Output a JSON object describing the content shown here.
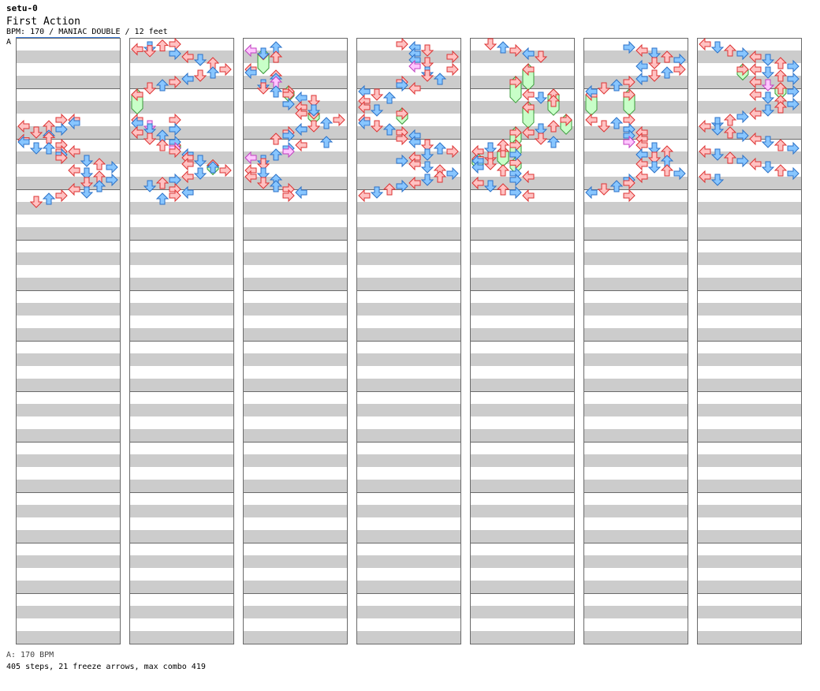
{
  "header": {
    "author": "setu-0",
    "title": "First Action",
    "info": "BPM: 170 / MANIAC DOUBLE / 12 feet",
    "speed_marker": "A"
  },
  "footer": {
    "legend": "A: 170 BPM",
    "summary": "405 steps, 21 freeze arrows, max combo 419"
  },
  "colors": {
    "band": "#cccccc",
    "frame": "#6a6a6a",
    "red_fill": "#ffc2c2",
    "red_stroke": "#dd3333",
    "blue_fill": "#88c6ff",
    "blue_stroke": "#2c72c8",
    "pink_fill": "#ffc6ff",
    "pink_stroke": "#c040c0",
    "freeze_fill": "#c8ffc8",
    "freeze_stroke": "#3a9a3a"
  },
  "chart_data": {
    "type": "stepchart",
    "bpm": 170,
    "mode": "MANIAC DOUBLE",
    "difficulty_feet": 12,
    "steps": 405,
    "freeze_arrows": 21,
    "max_combo": 419,
    "columns": 7,
    "measures_per_column": 12,
    "lanes": 8,
    "lane_legend": [
      "L",
      "D",
      "U",
      "R",
      "L",
      "D",
      "U",
      "R"
    ],
    "notes": [
      [
        0,
        6.0,
        3
      ],
      [
        0,
        6.0,
        4
      ],
      [
        0,
        6.25,
        4
      ],
      [
        0,
        6.5,
        2
      ],
      [
        0,
        6.5,
        0
      ],
      [
        0,
        6.75,
        3
      ],
      [
        0,
        7.0,
        1
      ],
      [
        0,
        7.25,
        2
      ],
      [
        0,
        7.4,
        2
      ],
      [
        0,
        7.6,
        0
      ],
      [
        0,
        7.75,
        0
      ],
      [
        0,
        8.0,
        3
      ],
      [
        0,
        8.25,
        2
      ],
      [
        0,
        8.25,
        1
      ],
      [
        0,
        8.5,
        3
      ],
      [
        0,
        8.5,
        4
      ],
      [
        0,
        8.75,
        3
      ],
      [
        0,
        9.0,
        3
      ],
      [
        0,
        9.25,
        5
      ],
      [
        0,
        9.5,
        6
      ],
      [
        0,
        9.75,
        7
      ],
      [
        0,
        10.0,
        4
      ],
      [
        0,
        10.25,
        5
      ],
      [
        0,
        10.5,
        6
      ],
      [
        0,
        10.75,
        7
      ],
      [
        0,
        11.0,
        5
      ],
      [
        0,
        11.25,
        6
      ],
      [
        0,
        11.5,
        4
      ],
      [
        0,
        11.75,
        5
      ],
      [
        0,
        12.0,
        3
      ],
      [
        0,
        12.25,
        2
      ],
      [
        0,
        12.5,
        1
      ],
      [
        1,
        0.0,
        3
      ],
      [
        1,
        0.1,
        2
      ],
      [
        1,
        0.25,
        1
      ],
      [
        1,
        0.4,
        0
      ],
      [
        1,
        0.55,
        1
      ],
      [
        1,
        0.75,
        3
      ],
      [
        1,
        1.0,
        4
      ],
      [
        1,
        1.25,
        5
      ],
      [
        1,
        1.5,
        6
      ],
      [
        1,
        2.0,
        7
      ],
      [
        1,
        2.25,
        6
      ],
      [
        1,
        2.5,
        5
      ],
      [
        1,
        2.75,
        4
      ],
      [
        1,
        3.0,
        3
      ],
      [
        1,
        3.25,
        2
      ],
      [
        1,
        3.5,
        1
      ],
      [
        1,
        4.0,
        0
      ],
      [
        1,
        6.0,
        0
      ],
      [
        1,
        6.0,
        3
      ],
      [
        1,
        6.25,
        0
      ],
      [
        1,
        6.5,
        1
      ],
      [
        1,
        6.75,
        1
      ],
      [
        1,
        6.75,
        3
      ],
      [
        1,
        7.0,
        0
      ],
      [
        1,
        7.25,
        2
      ],
      [
        1,
        7.5,
        1
      ],
      [
        1,
        7.75,
        3
      ],
      [
        1,
        8.0,
        2
      ],
      [
        1,
        8.25,
        3
      ],
      [
        1,
        8.5,
        3
      ],
      [
        1,
        8.75,
        4
      ],
      [
        1,
        9.0,
        4
      ],
      [
        1,
        9.25,
        5
      ],
      [
        1,
        9.5,
        4
      ],
      [
        1,
        9.75,
        6
      ],
      [
        1,
        10.0,
        7
      ],
      [
        1,
        10.25,
        5
      ],
      [
        1,
        10.5,
        4
      ],
      [
        1,
        10.75,
        3
      ],
      [
        1,
        11.0,
        2
      ],
      [
        1,
        11.25,
        1
      ],
      [
        1,
        11.5,
        3
      ],
      [
        1,
        11.75,
        4
      ],
      [
        1,
        12.0,
        3
      ],
      [
        1,
        12.25,
        2
      ],
      [
        2,
        0.25,
        2
      ],
      [
        2,
        0.5,
        0
      ],
      [
        2,
        0.75,
        1
      ],
      [
        2,
        1.0,
        2
      ],
      [
        2,
        2.0,
        0
      ],
      [
        2,
        2.25,
        0
      ],
      [
        2,
        2.5,
        2
      ],
      [
        2,
        2.75,
        2
      ],
      [
        2,
        3.0,
        2
      ],
      [
        2,
        3.25,
        1
      ],
      [
        2,
        3.5,
        1
      ],
      [
        2,
        3.75,
        2
      ],
      [
        2,
        4.0,
        3
      ],
      [
        2,
        4.25,
        4
      ],
      [
        2,
        4.5,
        5
      ],
      [
        2,
        4.75,
        3
      ],
      [
        2,
        5.0,
        4
      ],
      [
        2,
        5.25,
        5
      ],
      [
        2,
        5.5,
        4
      ],
      [
        2,
        6.0,
        7
      ],
      [
        2,
        6.25,
        6
      ],
      [
        2,
        6.5,
        5
      ],
      [
        2,
        6.75,
        4
      ],
      [
        2,
        7.0,
        3
      ],
      [
        2,
        7.25,
        3
      ],
      [
        2,
        7.5,
        2
      ],
      [
        2,
        7.75,
        6
      ],
      [
        2,
        8.0,
        4
      ],
      [
        2,
        8.25,
        3
      ],
      [
        2,
        8.5,
        3
      ],
      [
        2,
        8.75,
        2
      ],
      [
        2,
        9.0,
        0
      ],
      [
        2,
        9.25,
        1
      ],
      [
        2,
        9.5,
        1
      ],
      [
        2,
        10.0,
        0
      ],
      [
        2,
        10.25,
        1
      ],
      [
        2,
        10.5,
        0
      ],
      [
        2,
        10.75,
        2
      ],
      [
        2,
        11.0,
        1
      ],
      [
        2,
        11.25,
        2
      ],
      [
        2,
        11.5,
        3
      ],
      [
        2,
        11.75,
        4
      ],
      [
        2,
        12.0,
        3
      ],
      [
        3,
        0.0,
        3
      ],
      [
        3,
        0.25,
        4
      ],
      [
        3,
        0.5,
        5
      ],
      [
        3,
        0.75,
        4
      ],
      [
        3,
        1.0,
        7
      ],
      [
        3,
        1.25,
        4
      ],
      [
        3,
        1.5,
        5
      ],
      [
        3,
        1.75,
        4
      ],
      [
        3,
        2.0,
        7
      ],
      [
        3,
        2.25,
        5
      ],
      [
        3,
        2.5,
        5
      ],
      [
        3,
        2.75,
        6
      ],
      [
        3,
        3.0,
        3
      ],
      [
        3,
        3.25,
        3
      ],
      [
        3,
        3.5,
        4
      ],
      [
        3,
        3.75,
        0
      ],
      [
        3,
        4.0,
        1
      ],
      [
        3,
        4.25,
        2
      ],
      [
        3,
        4.5,
        0
      ],
      [
        3,
        5.0,
        0
      ],
      [
        3,
        5.25,
        1
      ],
      [
        3,
        5.5,
        3
      ],
      [
        3,
        6.0,
        0
      ],
      [
        3,
        6.25,
        0
      ],
      [
        3,
        6.5,
        1
      ],
      [
        3,
        6.75,
        2
      ],
      [
        3,
        7.0,
        3
      ],
      [
        3,
        7.25,
        4
      ],
      [
        3,
        7.5,
        3
      ],
      [
        3,
        7.75,
        4
      ],
      [
        3,
        8.0,
        5
      ],
      [
        3,
        8.25,
        6
      ],
      [
        3,
        8.5,
        7
      ],
      [
        3,
        8.75,
        5
      ],
      [
        3,
        9.0,
        4
      ],
      [
        3,
        9.25,
        3
      ],
      [
        3,
        9.5,
        4
      ],
      [
        3,
        9.75,
        5
      ],
      [
        3,
        10.0,
        6
      ],
      [
        3,
        10.25,
        7
      ],
      [
        3,
        10.5,
        6
      ],
      [
        3,
        10.75,
        5
      ],
      [
        3,
        11.0,
        4
      ],
      [
        3,
        11.25,
        3
      ],
      [
        3,
        11.5,
        2
      ],
      [
        3,
        11.75,
        1
      ],
      [
        3,
        12.0,
        0
      ],
      [
        4,
        0.0,
        1
      ],
      [
        4,
        0.25,
        2
      ],
      [
        4,
        0.5,
        3
      ],
      [
        4,
        0.75,
        4
      ],
      [
        4,
        1.0,
        5
      ],
      [
        4,
        4.0,
        4
      ],
      [
        4,
        4.25,
        5
      ],
      [
        4,
        4.5,
        6
      ],
      [
        4,
        5.0,
        4
      ],
      [
        4,
        6.0,
        7
      ],
      [
        4,
        6.5,
        6
      ],
      [
        4,
        6.75,
        5
      ],
      [
        4,
        7.0,
        4
      ],
      [
        4,
        7.5,
        5
      ],
      [
        4,
        7.75,
        6
      ],
      [
        4,
        8.0,
        2
      ],
      [
        4,
        8.25,
        1
      ],
      [
        4,
        8.5,
        0
      ],
      [
        4,
        8.75,
        3
      ],
      [
        4,
        9.0,
        1
      ],
      [
        4,
        9.25,
        0
      ],
      [
        4,
        9.5,
        1
      ],
      [
        4,
        9.75,
        0
      ],
      [
        4,
        10.0,
        2
      ],
      [
        4,
        10.25,
        3
      ],
      [
        4,
        10.5,
        4
      ],
      [
        4,
        10.75,
        3
      ],
      [
        4,
        11.0,
        0
      ],
      [
        4,
        11.25,
        1
      ],
      [
        4,
        11.5,
        2
      ],
      [
        4,
        11.75,
        3
      ],
      [
        4,
        12.0,
        4
      ],
      [
        5,
        0.25,
        3
      ],
      [
        5,
        0.5,
        4
      ],
      [
        5,
        0.75,
        5
      ],
      [
        5,
        1.0,
        6
      ],
      [
        5,
        1.25,
        7
      ],
      [
        5,
        1.5,
        5
      ],
      [
        5,
        1.75,
        4
      ],
      [
        5,
        2.0,
        7
      ],
      [
        5,
        2.25,
        6
      ],
      [
        5,
        2.5,
        5
      ],
      [
        5,
        2.75,
        4
      ],
      [
        5,
        3.0,
        3
      ],
      [
        5,
        3.25,
        2
      ],
      [
        5,
        3.5,
        1
      ],
      [
        5,
        3.75,
        0
      ],
      [
        5,
        6.0,
        0
      ],
      [
        5,
        6.0,
        3
      ],
      [
        5,
        6.25,
        2
      ],
      [
        5,
        6.5,
        1
      ],
      [
        5,
        6.75,
        3
      ],
      [
        5,
        7.0,
        4
      ],
      [
        5,
        7.25,
        3
      ],
      [
        5,
        7.5,
        4
      ],
      [
        5,
        7.75,
        3
      ],
      [
        5,
        8.0,
        4
      ],
      [
        5,
        8.25,
        5
      ],
      [
        5,
        8.5,
        6
      ],
      [
        5,
        8.75,
        4
      ],
      [
        5,
        9.0,
        5
      ],
      [
        5,
        9.25,
        6
      ],
      [
        5,
        9.5,
        4
      ],
      [
        5,
        9.75,
        5
      ],
      [
        5,
        10.0,
        6
      ],
      [
        5,
        10.25,
        7
      ],
      [
        5,
        10.5,
        4
      ],
      [
        5,
        10.75,
        3
      ],
      [
        5,
        11.0,
        3
      ],
      [
        5,
        11.25,
        2
      ],
      [
        5,
        11.5,
        1
      ],
      [
        5,
        11.75,
        0
      ],
      [
        5,
        12.0,
        3
      ],
      [
        6,
        0.0,
        0
      ],
      [
        6,
        0.25,
        1
      ],
      [
        6,
        0.5,
        2
      ],
      [
        6,
        0.75,
        3
      ],
      [
        6,
        1.0,
        4
      ],
      [
        6,
        1.25,
        5
      ],
      [
        6,
        1.5,
        6
      ],
      [
        6,
        1.75,
        7
      ],
      [
        6,
        2.0,
        4
      ],
      [
        6,
        2.25,
        5
      ],
      [
        6,
        2.5,
        6
      ],
      [
        6,
        2.75,
        7
      ],
      [
        6,
        3.0,
        4
      ],
      [
        6,
        3.25,
        5
      ],
      [
        6,
        3.5,
        6
      ],
      [
        6,
        3.75,
        7
      ],
      [
        6,
        4.0,
        4
      ],
      [
        6,
        4.25,
        5
      ],
      [
        6,
        4.5,
        6
      ],
      [
        6,
        4.75,
        7
      ],
      [
        6,
        5.0,
        6
      ],
      [
        6,
        5.25,
        5
      ],
      [
        6,
        5.5,
        4
      ],
      [
        6,
        5.75,
        3
      ],
      [
        6,
        6.0,
        2
      ],
      [
        6,
        6.25,
        1
      ],
      [
        6,
        6.5,
        0
      ],
      [
        6,
        6.75,
        1
      ],
      [
        6,
        7.0,
        2
      ],
      [
        6,
        7.25,
        3
      ],
      [
        6,
        7.5,
        4
      ],
      [
        6,
        7.75,
        5
      ],
      [
        6,
        8.0,
        6
      ],
      [
        6,
        8.25,
        7
      ],
      [
        6,
        8.5,
        0
      ],
      [
        6,
        8.75,
        1
      ],
      [
        6,
        9.0,
        2
      ],
      [
        6,
        9.25,
        3
      ],
      [
        6,
        9.5,
        4
      ],
      [
        6,
        9.75,
        5
      ],
      [
        6,
        10.0,
        6
      ],
      [
        6,
        10.25,
        7
      ],
      [
        6,
        10.5,
        0
      ],
      [
        6,
        10.75,
        1
      ]
    ],
    "freezes": [
      [
        1,
        4.0,
        5.1,
        0
      ],
      [
        1,
        8.0,
        8.25,
        3
      ],
      [
        1,
        9.6,
        9.9,
        6
      ],
      [
        2,
        0.8,
        1.9,
        1
      ],
      [
        2,
        3.75,
        4.1,
        3
      ],
      [
        2,
        5.5,
        5.9,
        5
      ],
      [
        3,
        5.5,
        5.9,
        3
      ],
      [
        4,
        2.0,
        3.2,
        4
      ],
      [
        4,
        3.0,
        4.2,
        3
      ],
      [
        4,
        4.0,
        5.2,
        6
      ],
      [
        4,
        5.0,
        6.2,
        4
      ],
      [
        4,
        6.0,
        6.7,
        7
      ],
      [
        4,
        7.0,
        7.7,
        3
      ],
      [
        4,
        8.0,
        8.6,
        3
      ],
      [
        4,
        8.5,
        9.25,
        2
      ],
      [
        4,
        9.1,
        9.5,
        0
      ],
      [
        4,
        9.4,
        9.8,
        3
      ],
      [
        5,
        4.0,
        5.2,
        0
      ],
      [
        5,
        4.0,
        5.2,
        3
      ],
      [
        6,
        2.0,
        2.4,
        3
      ],
      [
        6,
        3.5,
        3.9,
        6
      ]
    ],
    "pink_positions": [
      [
        2,
        0.5,
        0
      ],
      [
        2,
        3.0,
        2
      ],
      [
        2,
        3.3,
        3
      ],
      [
        2,
        4.5,
        3
      ],
      [
        2,
        7.0,
        5
      ],
      [
        2,
        8.5,
        3
      ],
      [
        2,
        9.0,
        0
      ],
      [
        0,
        8.5,
        2
      ],
      [
        0,
        8.75,
        0
      ],
      [
        1,
        6.5,
        1
      ],
      [
        1,
        8.0,
        1
      ],
      [
        1,
        8.25,
        3
      ],
      [
        1,
        9.0,
        3
      ],
      [
        1,
        10.5,
        6
      ],
      [
        1,
        11.5,
        5
      ],
      [
        1,
        11.75,
        3
      ],
      [
        3,
        1.5,
        4
      ],
      [
        3,
        1.75,
        7
      ],
      [
        3,
        1.75,
        4
      ],
      [
        3,
        9.5,
        5
      ],
      [
        3,
        9.75,
        6
      ],
      [
        3,
        10.0,
        5
      ],
      [
        5,
        7.5,
        2
      ],
      [
        5,
        7.75,
        3
      ],
      [
        5,
        7.8,
        4
      ],
      [
        6,
        2.75,
        5
      ],
      [
        6,
        3.25,
        5
      ],
      [
        6,
        5.5,
        5
      ],
      [
        6,
        5.75,
        5
      ]
    ]
  }
}
